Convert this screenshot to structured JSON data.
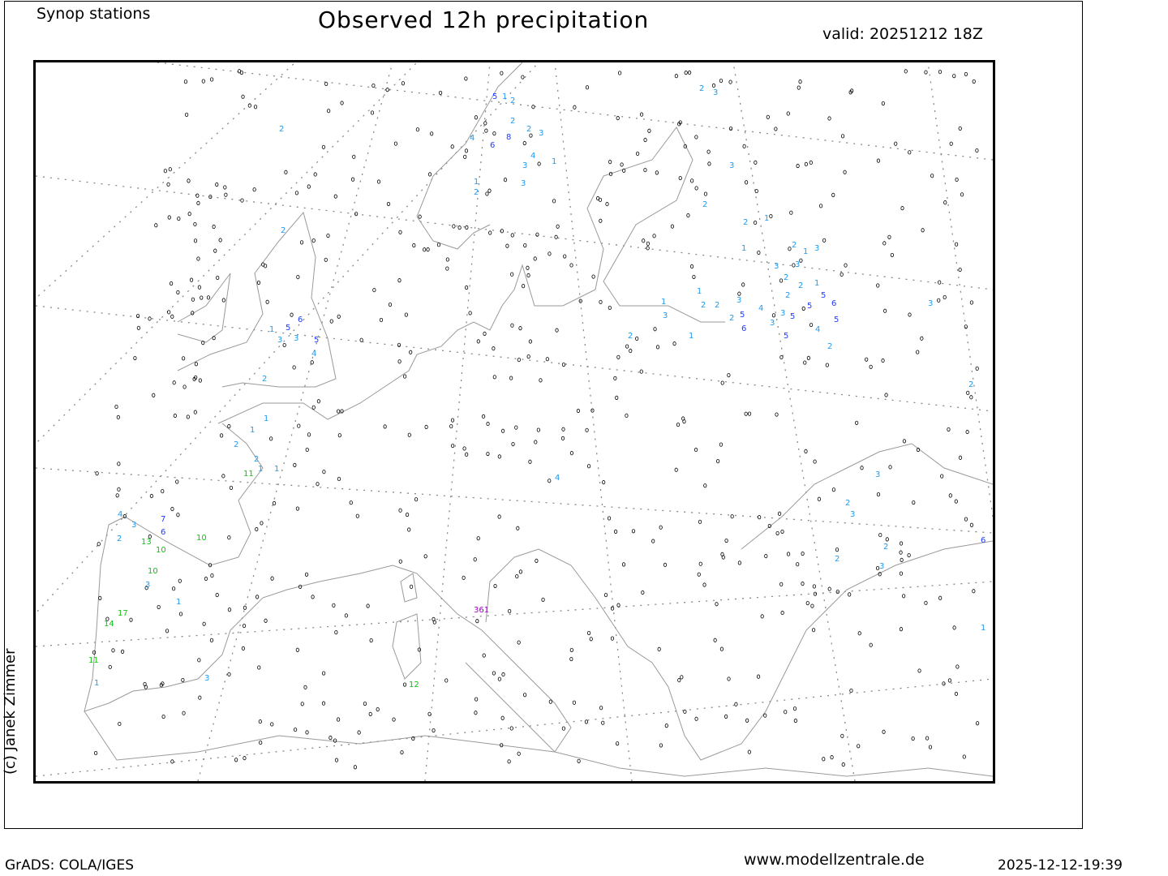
{
  "header": {
    "subtitle": "Synop stations",
    "title": "Observed 12h precipitation",
    "valid": "valid: 20251212 18Z"
  },
  "credit": "(c) Janek Zimmer",
  "footer": {
    "software": "GrADS: COLA/IGES",
    "website": "www.modellzentrale.de",
    "timestamp": "2025-12-12-19:39"
  },
  "colors": {
    "light": "#1e9bf0",
    "medium": "#1e3cff",
    "heavy": "#10c010",
    "extreme": "#a000c8",
    "zero": "#000000",
    "coast": "#9a9a9a",
    "grid": "#888888"
  },
  "map": {
    "labels": [
      "5",
      "1",
      "2",
      "8",
      "2",
      "3",
      "3",
      "4",
      "4",
      "2",
      "6",
      "1",
      "2",
      "3",
      "1",
      "2",
      "3",
      "3",
      "2",
      "2",
      "1",
      "1",
      "2",
      "1",
      "3",
      "2",
      "3",
      "3",
      "2",
      "1",
      "2",
      "5",
      "3",
      "5",
      "4",
      "5",
      "6",
      "2",
      "3",
      "5",
      "3",
      "1",
      "2",
      "2",
      "5",
      "4",
      "6",
      "5",
      "2",
      "1",
      "3",
      "2",
      "1",
      "2",
      "2",
      "5",
      "3",
      "5",
      "6",
      "4",
      "3",
      "1",
      "2",
      "1",
      "1",
      "2",
      "2",
      "1",
      "1",
      "11",
      "4",
      "3",
      "7",
      "6",
      "2",
      "13",
      "10",
      "10",
      "10",
      "3",
      "1",
      "14",
      "17",
      "11",
      "1",
      "3",
      "361",
      "12",
      "3",
      "2",
      "3",
      "2",
      "6",
      "4",
      "3",
      "2",
      "2",
      "3",
      "1"
    ]
  }
}
